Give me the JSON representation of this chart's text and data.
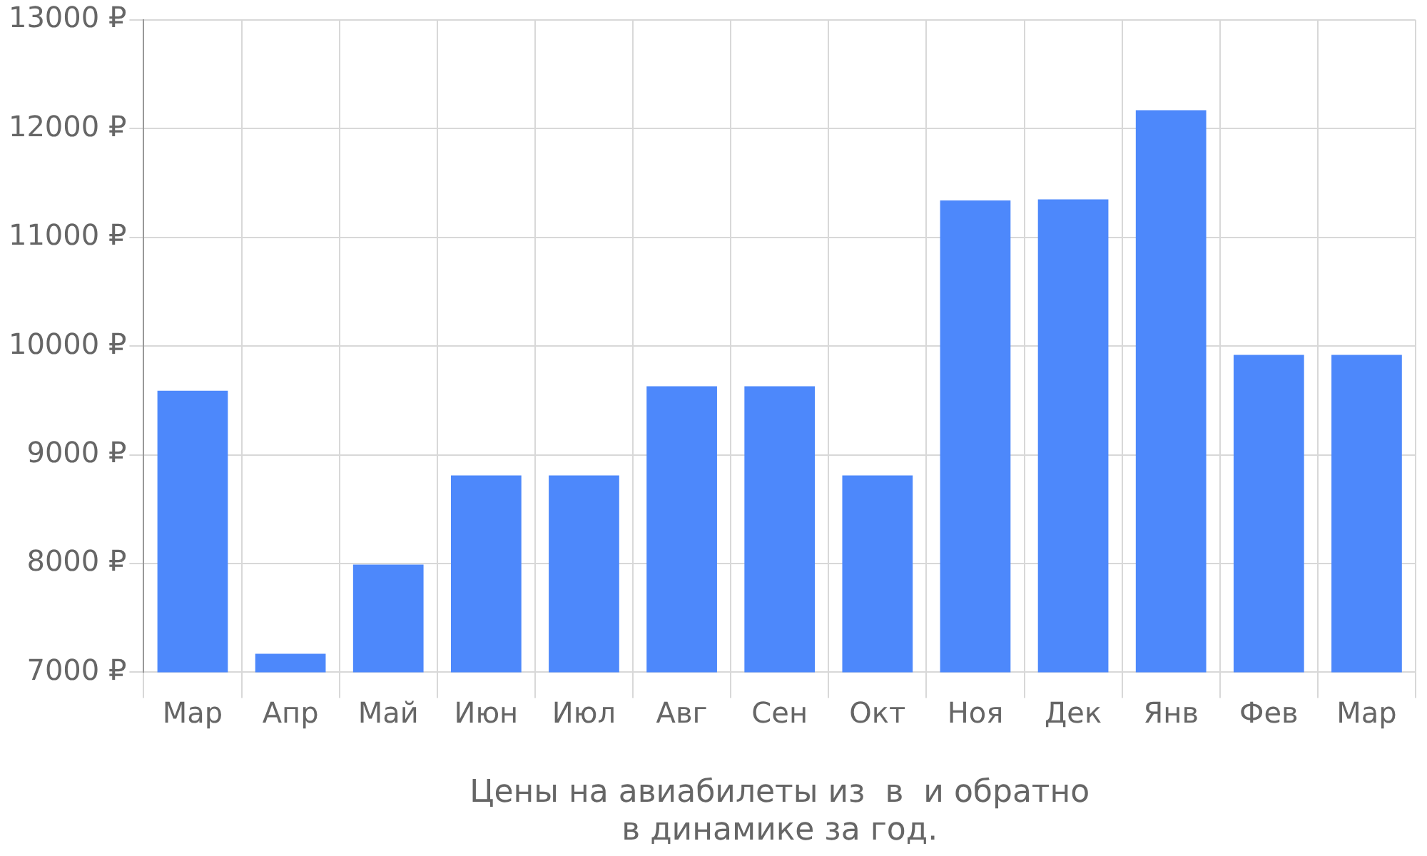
{
  "chart_data": {
    "type": "bar",
    "xlabel": "Цены на авиабилеты из  в  и обратно\nв динамике за год.",
    "categories": [
      "Мар",
      "Апр",
      "Май",
      "Июн",
      "Июл",
      "Авг",
      "Сен",
      "Окт",
      "Ноя",
      "Дек",
      "Янв",
      "Фев",
      "Мар"
    ],
    "values": [
      9590,
      7170,
      7990,
      8810,
      8810,
      9630,
      9630,
      8810,
      11340,
      11350,
      12170,
      9920,
      9920
    ],
    "color": "#4d88fb",
    "ylim": [
      7000,
      13000
    ],
    "yticks": [
      {
        "value": 7000,
        "label": "7000 ₽"
      },
      {
        "value": 8000,
        "label": "8000 ₽"
      },
      {
        "value": 9000,
        "label": "9000 ₽"
      },
      {
        "value": 10000,
        "label": "10000 ₽"
      },
      {
        "value": 11000,
        "label": "11000 ₽"
      },
      {
        "value": 12000,
        "label": "12000 ₽"
      },
      {
        "value": 13000,
        "label": "13000 ₽"
      }
    ],
    "grid": true
  }
}
